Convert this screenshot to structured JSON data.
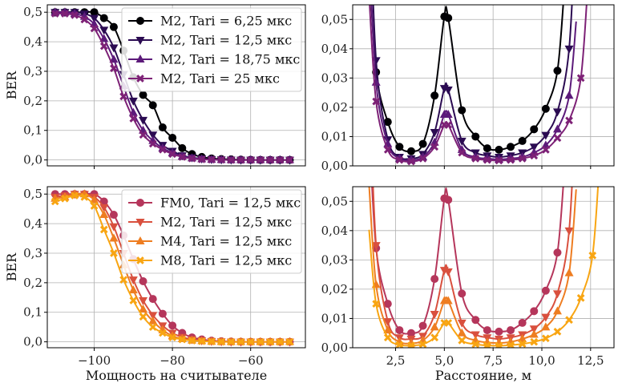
{
  "chart_data": [
    {
      "type": "line",
      "panel": "top-left",
      "title": "",
      "xlabel": "",
      "ylabel": "BER",
      "xlim": [
        -112,
        -46
      ],
      "ylim": [
        -0.02,
        0.525
      ],
      "xticks": [
        -100,
        -80,
        -60
      ],
      "xtick_labels": [
        "",
        "",
        ""
      ],
      "yticks": [
        0,
        0.1,
        0.2,
        0.3,
        0.4,
        0.5
      ],
      "ytick_labels": [
        "0,0",
        "0,1",
        "0,2",
        "0,3",
        "0,4",
        "0,5"
      ],
      "grid": true,
      "legend": "top-right",
      "series": [
        {
          "name": "M2, Tari = 6,25 мкс",
          "color": "#000004",
          "marker": "circle",
          "x": [
            -110,
            -107.5,
            -105,
            -102.5,
            -100,
            -97.5,
            -95,
            -92.5,
            -90,
            -87.5,
            -85,
            -82.5,
            -80,
            -77.5,
            -75,
            -72.5,
            -70,
            -67.5,
            -65,
            -62.5,
            -60,
            -57.5,
            -55,
            -52.5,
            -50
          ],
          "y": [
            0.5,
            0.5,
            0.5,
            0.5,
            0.5,
            0.48,
            0.45,
            0.37,
            0.28,
            0.22,
            0.185,
            0.11,
            0.075,
            0.04,
            0.02,
            0.01,
            0.005,
            0.003,
            0.002,
            0.001,
            0.0005,
            0,
            0,
            0,
            0
          ]
        },
        {
          "name": "M2, Tari = 12,5 мкс",
          "color": "#2b0b52",
          "marker": "triangle-down",
          "x": [
            -110,
            -107.5,
            -105,
            -102.5,
            -100,
            -97.5,
            -95,
            -92.5,
            -90,
            -87.5,
            -85,
            -82.5,
            -80,
            -77.5,
            -75,
            -72.5,
            -70,
            -67.5,
            -65,
            -62.5,
            -60,
            -57.5,
            -55,
            -52.5,
            -50
          ],
          "y": [
            0.5,
            0.5,
            0.5,
            0.495,
            0.48,
            0.44,
            0.38,
            0.29,
            0.2,
            0.135,
            0.085,
            0.05,
            0.03,
            0.015,
            0.008,
            0.004,
            0.002,
            0.001,
            0.0005,
            0,
            0,
            0,
            0,
            0,
            0
          ]
        },
        {
          "name": "M2, Tari = 18,75 мкс",
          "color": "#5c1a7a",
          "marker": "triangle-up",
          "x": [
            -110,
            -107.5,
            -105,
            -102.5,
            -100,
            -97.5,
            -95,
            -92.5,
            -90,
            -87.5,
            -85,
            -82.5,
            -80,
            -77.5,
            -75,
            -72.5,
            -70,
            -67.5,
            -65,
            -62.5,
            -60,
            -57.5,
            -55,
            -52.5,
            -50
          ],
          "y": [
            0.5,
            0.5,
            0.495,
            0.485,
            0.46,
            0.41,
            0.34,
            0.25,
            0.16,
            0.1,
            0.065,
            0.04,
            0.024,
            0.012,
            0.006,
            0.003,
            0.0015,
            0.0008,
            0,
            0,
            0,
            0,
            0,
            0,
            0
          ]
        },
        {
          "name": "M2, Tari = 25 мкс",
          "color": "#7d2176",
          "marker": "x",
          "x": [
            -110,
            -107.5,
            -105,
            -102.5,
            -100,
            -97.5,
            -95,
            -92.5,
            -90,
            -87.5,
            -85,
            -82.5,
            -80,
            -77.5,
            -75,
            -72.5,
            -70,
            -67.5,
            -65,
            -62.5,
            -60,
            -57.5,
            -55,
            -52.5,
            -50
          ],
          "y": [
            0.495,
            0.495,
            0.49,
            0.475,
            0.445,
            0.385,
            0.31,
            0.215,
            0.14,
            0.085,
            0.055,
            0.035,
            0.02,
            0.01,
            0.005,
            0.002,
            0.001,
            0.0005,
            0,
            0,
            0,
            0,
            0,
            0,
            0
          ]
        }
      ]
    },
    {
      "type": "line",
      "panel": "top-right",
      "title": "",
      "xlabel": "",
      "ylabel": "",
      "xlim": [
        0.3,
        13.7
      ],
      "ylim": [
        0,
        0.055
      ],
      "xticks": [
        2.5,
        5,
        7.5,
        10,
        12.5
      ],
      "xtick_labels": [
        "",
        "",
        "",
        "",
        ""
      ],
      "yticks": [
        0,
        0.01,
        0.02,
        0.03,
        0.04,
        0.05
      ],
      "ytick_labels": [
        "0,00",
        "0,01",
        "0,02",
        "0,03",
        "0,04",
        "0,05"
      ],
      "grid": true,
      "legend": "none",
      "series": [
        {
          "name": "M2, Tari = 6,25 мкс",
          "color": "#000004",
          "marker": "circle",
          "x": [
            1.5,
            2.1,
            2.7,
            3.3,
            3.9,
            4.5,
            5.0,
            5.2,
            5.9,
            6.6,
            7.2,
            7.8,
            8.4,
            9.0,
            9.6,
            10.2,
            10.8
          ],
          "y": [
            0.032,
            0.015,
            0.0065,
            0.005,
            0.0075,
            0.024,
            0.051,
            0.0505,
            0.019,
            0.01,
            0.006,
            0.0055,
            0.0065,
            0.0085,
            0.0125,
            0.0195,
            0.0325
          ]
        },
        {
          "name": "M2, Tari = 12,5 мкс",
          "color": "#2b0b52",
          "marker": "triangle-down",
          "x": [
            1.5,
            2.1,
            2.7,
            3.3,
            3.9,
            4.5,
            5.0,
            5.2,
            5.9,
            6.6,
            7.2,
            7.8,
            8.4,
            9.0,
            9.6,
            10.2,
            10.8,
            11.4
          ],
          "y": [
            0.036,
            0.009,
            0.003,
            0.0025,
            0.004,
            0.0115,
            0.0265,
            0.026,
            0.0085,
            0.0045,
            0.0035,
            0.003,
            0.0035,
            0.0045,
            0.0065,
            0.0105,
            0.0185,
            0.04
          ]
        },
        {
          "name": "M2, Tari = 18,75 мкс",
          "color": "#5c1a7a",
          "marker": "triangle-up",
          "x": [
            1.5,
            2.1,
            2.7,
            3.3,
            3.9,
            4.5,
            5.0,
            5.2,
            5.9,
            6.6,
            7.2,
            7.8,
            8.4,
            9.0,
            9.6,
            10.2,
            10.8,
            11.4
          ],
          "y": [
            0.0285,
            0.0075,
            0.0025,
            0.002,
            0.003,
            0.008,
            0.0175,
            0.0175,
            0.0055,
            0.003,
            0.0025,
            0.0022,
            0.0025,
            0.003,
            0.0045,
            0.007,
            0.0125,
            0.024
          ]
        },
        {
          "name": "M2, Tari = 25 мкс",
          "color": "#7d2176",
          "marker": "x",
          "x": [
            1.5,
            2.1,
            2.7,
            3.3,
            3.9,
            4.5,
            5.0,
            5.2,
            5.9,
            6.6,
            7.2,
            7.8,
            8.4,
            9.0,
            9.6,
            10.2,
            10.8,
            11.4,
            12.0
          ],
          "y": [
            0.022,
            0.0055,
            0.002,
            0.0015,
            0.0025,
            0.0065,
            0.014,
            0.014,
            0.0045,
            0.0025,
            0.002,
            0.0018,
            0.002,
            0.0025,
            0.0035,
            0.0055,
            0.0095,
            0.0155,
            0.03
          ]
        }
      ]
    },
    {
      "type": "line",
      "panel": "bottom-left",
      "title": "",
      "xlabel": "Мощность на считывателе",
      "ylabel": "BER",
      "xlim": [
        -112,
        -46
      ],
      "ylim": [
        -0.02,
        0.525
      ],
      "xticks": [
        -100,
        -80,
        -60
      ],
      "xtick_labels": [
        "−100",
        "−80",
        "−60"
      ],
      "yticks": [
        0,
        0.1,
        0.2,
        0.3,
        0.4,
        0.5
      ],
      "ytick_labels": [
        "0,0",
        "0,1",
        "0,2",
        "0,3",
        "0,4",
        "0,5"
      ],
      "grid": true,
      "legend": "top-right",
      "series": [
        {
          "name": "FM0, Tari = 12,5 мкс",
          "color": "#b5365b",
          "marker": "circle",
          "x": [
            -110,
            -107.5,
            -105,
            -102.5,
            -100,
            -97.5,
            -95,
            -92.5,
            -90,
            -87.5,
            -85,
            -82.5,
            -80,
            -77.5,
            -75,
            -72.5,
            -70,
            -67.5,
            -65,
            -62.5,
            -60,
            -57.5,
            -55,
            -52.5,
            -50
          ],
          "y": [
            0.5,
            0.5,
            0.5,
            0.5,
            0.5,
            0.475,
            0.43,
            0.36,
            0.28,
            0.205,
            0.145,
            0.095,
            0.055,
            0.03,
            0.015,
            0.008,
            0.004,
            0.002,
            0.001,
            0.0005,
            0,
            0,
            0,
            0,
            0
          ]
        },
        {
          "name": "M2, Tari = 12,5 мкс",
          "color": "#d9503e",
          "marker": "triangle-down",
          "x": [
            -110,
            -107.5,
            -105,
            -102.5,
            -100,
            -97.5,
            -95,
            -92.5,
            -90,
            -87.5,
            -85,
            -82.5,
            -80,
            -77.5,
            -75,
            -72.5,
            -70,
            -67.5,
            -65,
            -62.5,
            -60,
            -57.5,
            -55,
            -52.5,
            -50
          ],
          "y": [
            0.49,
            0.495,
            0.5,
            0.5,
            0.49,
            0.455,
            0.39,
            0.3,
            0.21,
            0.14,
            0.09,
            0.055,
            0.03,
            0.016,
            0.008,
            0.004,
            0.002,
            0.001,
            0,
            0,
            0,
            0,
            0,
            0,
            0
          ]
        },
        {
          "name": "M4, Tari = 12,5 мкс",
          "color": "#ee7d21",
          "marker": "triangle-up",
          "x": [
            -110,
            -107.5,
            -105,
            -102.5,
            -100,
            -97.5,
            -95,
            -92.5,
            -90,
            -87.5,
            -85,
            -82.5,
            -80,
            -77.5,
            -75,
            -72.5,
            -70,
            -67.5,
            -65,
            -62.5,
            -60,
            -57.5,
            -55,
            -52.5,
            -50
          ],
          "y": [
            0.485,
            0.49,
            0.5,
            0.5,
            0.48,
            0.43,
            0.35,
            0.26,
            0.175,
            0.11,
            0.07,
            0.04,
            0.02,
            0.01,
            0.005,
            0.003,
            0.001,
            0.0005,
            0,
            0,
            0,
            0,
            0,
            0,
            0
          ]
        },
        {
          "name": "M8, Tari = 12,5 мкс",
          "color": "#f8a512",
          "marker": "x",
          "x": [
            -110,
            -107.5,
            -105,
            -102.5,
            -100,
            -97.5,
            -95,
            -92.5,
            -90,
            -87.5,
            -85,
            -82.5,
            -80,
            -77.5,
            -75,
            -72.5,
            -70,
            -67.5,
            -65,
            -62.5,
            -60,
            -57.5,
            -55,
            -52.5,
            -50
          ],
          "y": [
            0.475,
            0.485,
            0.495,
            0.49,
            0.46,
            0.38,
            0.3,
            0.21,
            0.14,
            0.085,
            0.05,
            0.03,
            0.015,
            0.008,
            0.004,
            0.002,
            0.001,
            0,
            0,
            0,
            0,
            0,
            0,
            0,
            0
          ]
        }
      ]
    },
    {
      "type": "line",
      "panel": "bottom-right",
      "title": "",
      "xlabel": "Расстояние, м",
      "ylabel": "",
      "xlim": [
        0.3,
        13.7
      ],
      "ylim": [
        0,
        0.055
      ],
      "xticks": [
        2.5,
        5,
        7.5,
        10,
        12.5
      ],
      "xtick_labels": [
        "2,5",
        "5,0",
        "7,5",
        "10,0",
        "12,5"
      ],
      "yticks": [
        0,
        0.01,
        0.02,
        0.03,
        0.04,
        0.05
      ],
      "ytick_labels": [
        "0,00",
        "0,01",
        "0,02",
        "0,03",
        "0,04",
        "0,05"
      ],
      "grid": true,
      "legend": "none",
      "series": [
        {
          "name": "FM0, Tari = 12,5 мкс",
          "color": "#b5365b",
          "marker": "circle",
          "x": [
            1.5,
            2.1,
            2.7,
            3.3,
            3.9,
            4.5,
            5.0,
            5.2,
            5.9,
            6.6,
            7.2,
            7.8,
            8.4,
            9.0,
            9.6,
            10.2,
            10.8
          ],
          "y": [
            0.034,
            0.015,
            0.006,
            0.005,
            0.0075,
            0.0235,
            0.051,
            0.0505,
            0.0185,
            0.0095,
            0.006,
            0.0055,
            0.006,
            0.0085,
            0.0125,
            0.0195,
            0.0325
          ]
        },
        {
          "name": "M2, Tari = 12,5 мкс",
          "color": "#d9503e",
          "marker": "triangle-down",
          "x": [
            1.5,
            2.1,
            2.7,
            3.3,
            3.9,
            4.5,
            5.0,
            5.2,
            5.9,
            6.6,
            7.2,
            7.8,
            8.4,
            9.0,
            9.6,
            10.2,
            10.8,
            11.4
          ],
          "y": [
            0.035,
            0.009,
            0.0035,
            0.003,
            0.004,
            0.0115,
            0.0265,
            0.026,
            0.0085,
            0.0045,
            0.0035,
            0.003,
            0.0035,
            0.0045,
            0.0065,
            0.0105,
            0.0185,
            0.04
          ]
        },
        {
          "name": "M4, Tari = 12,5 мкс",
          "color": "#ee7d21",
          "marker": "triangle-up",
          "x": [
            1.5,
            2.1,
            2.7,
            3.3,
            3.9,
            4.5,
            5.0,
            5.2,
            5.9,
            6.6,
            7.2,
            7.8,
            8.4,
            9.0,
            9.6,
            10.2,
            10.8,
            11.4
          ],
          "y": [
            0.0215,
            0.006,
            0.002,
            0.0015,
            0.0025,
            0.007,
            0.016,
            0.016,
            0.005,
            0.0025,
            0.0018,
            0.0016,
            0.002,
            0.003,
            0.0045,
            0.007,
            0.0125,
            0.0255
          ]
        },
        {
          "name": "M8, Tari = 12,5 мкс",
          "color": "#f8a512",
          "marker": "x",
          "x": [
            1.5,
            2.1,
            2.7,
            3.3,
            3.9,
            4.5,
            5.0,
            5.2,
            5.9,
            6.6,
            7.2,
            7.8,
            8.4,
            9.0,
            9.6,
            10.2,
            10.8,
            11.4,
            12.0,
            12.6
          ],
          "y": [
            0.015,
            0.0035,
            0.001,
            0.0008,
            0.0012,
            0.0035,
            0.0085,
            0.0085,
            0.0025,
            0.0012,
            0.0008,
            0.0007,
            0.0009,
            0.0013,
            0.002,
            0.0032,
            0.0055,
            0.0095,
            0.017,
            0.0315
          ]
        }
      ]
    }
  ]
}
